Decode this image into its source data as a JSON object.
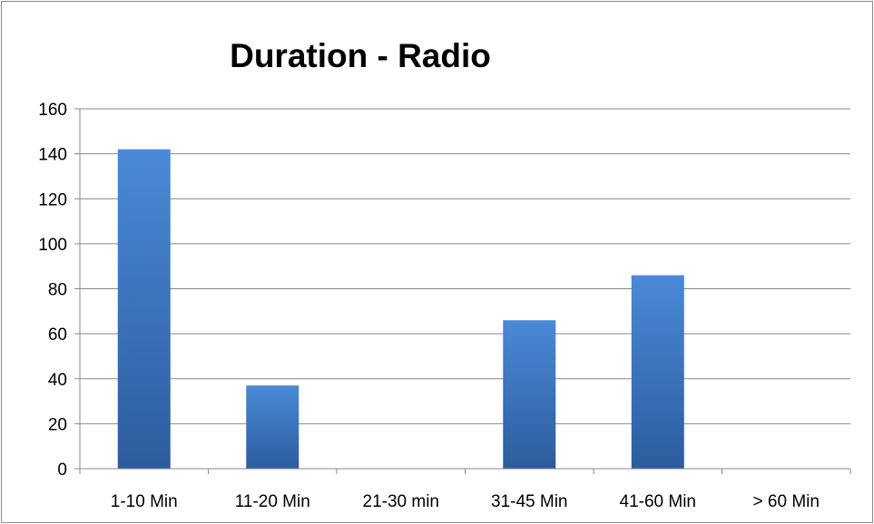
{
  "chart_data": {
    "type": "bar",
    "title": "Duration - Radio",
    "xlabel": "",
    "ylabel": "",
    "categories": [
      "1-10 Min",
      "11-20 Min",
      "21-30 min",
      "31-45 Min",
      "41-60 Min",
      "> 60 Min"
    ],
    "values": [
      142,
      37,
      0,
      66,
      86,
      0
    ],
    "ylim": [
      0,
      160
    ],
    "yticks": [
      0,
      20,
      40,
      60,
      80,
      100,
      120,
      140,
      160
    ],
    "grid": true,
    "legend": "none"
  },
  "colors": {
    "bar_top": "#4a8ad6",
    "bar_bottom": "#2c5c9e",
    "gridline": "#888888",
    "axis": "#888888"
  }
}
